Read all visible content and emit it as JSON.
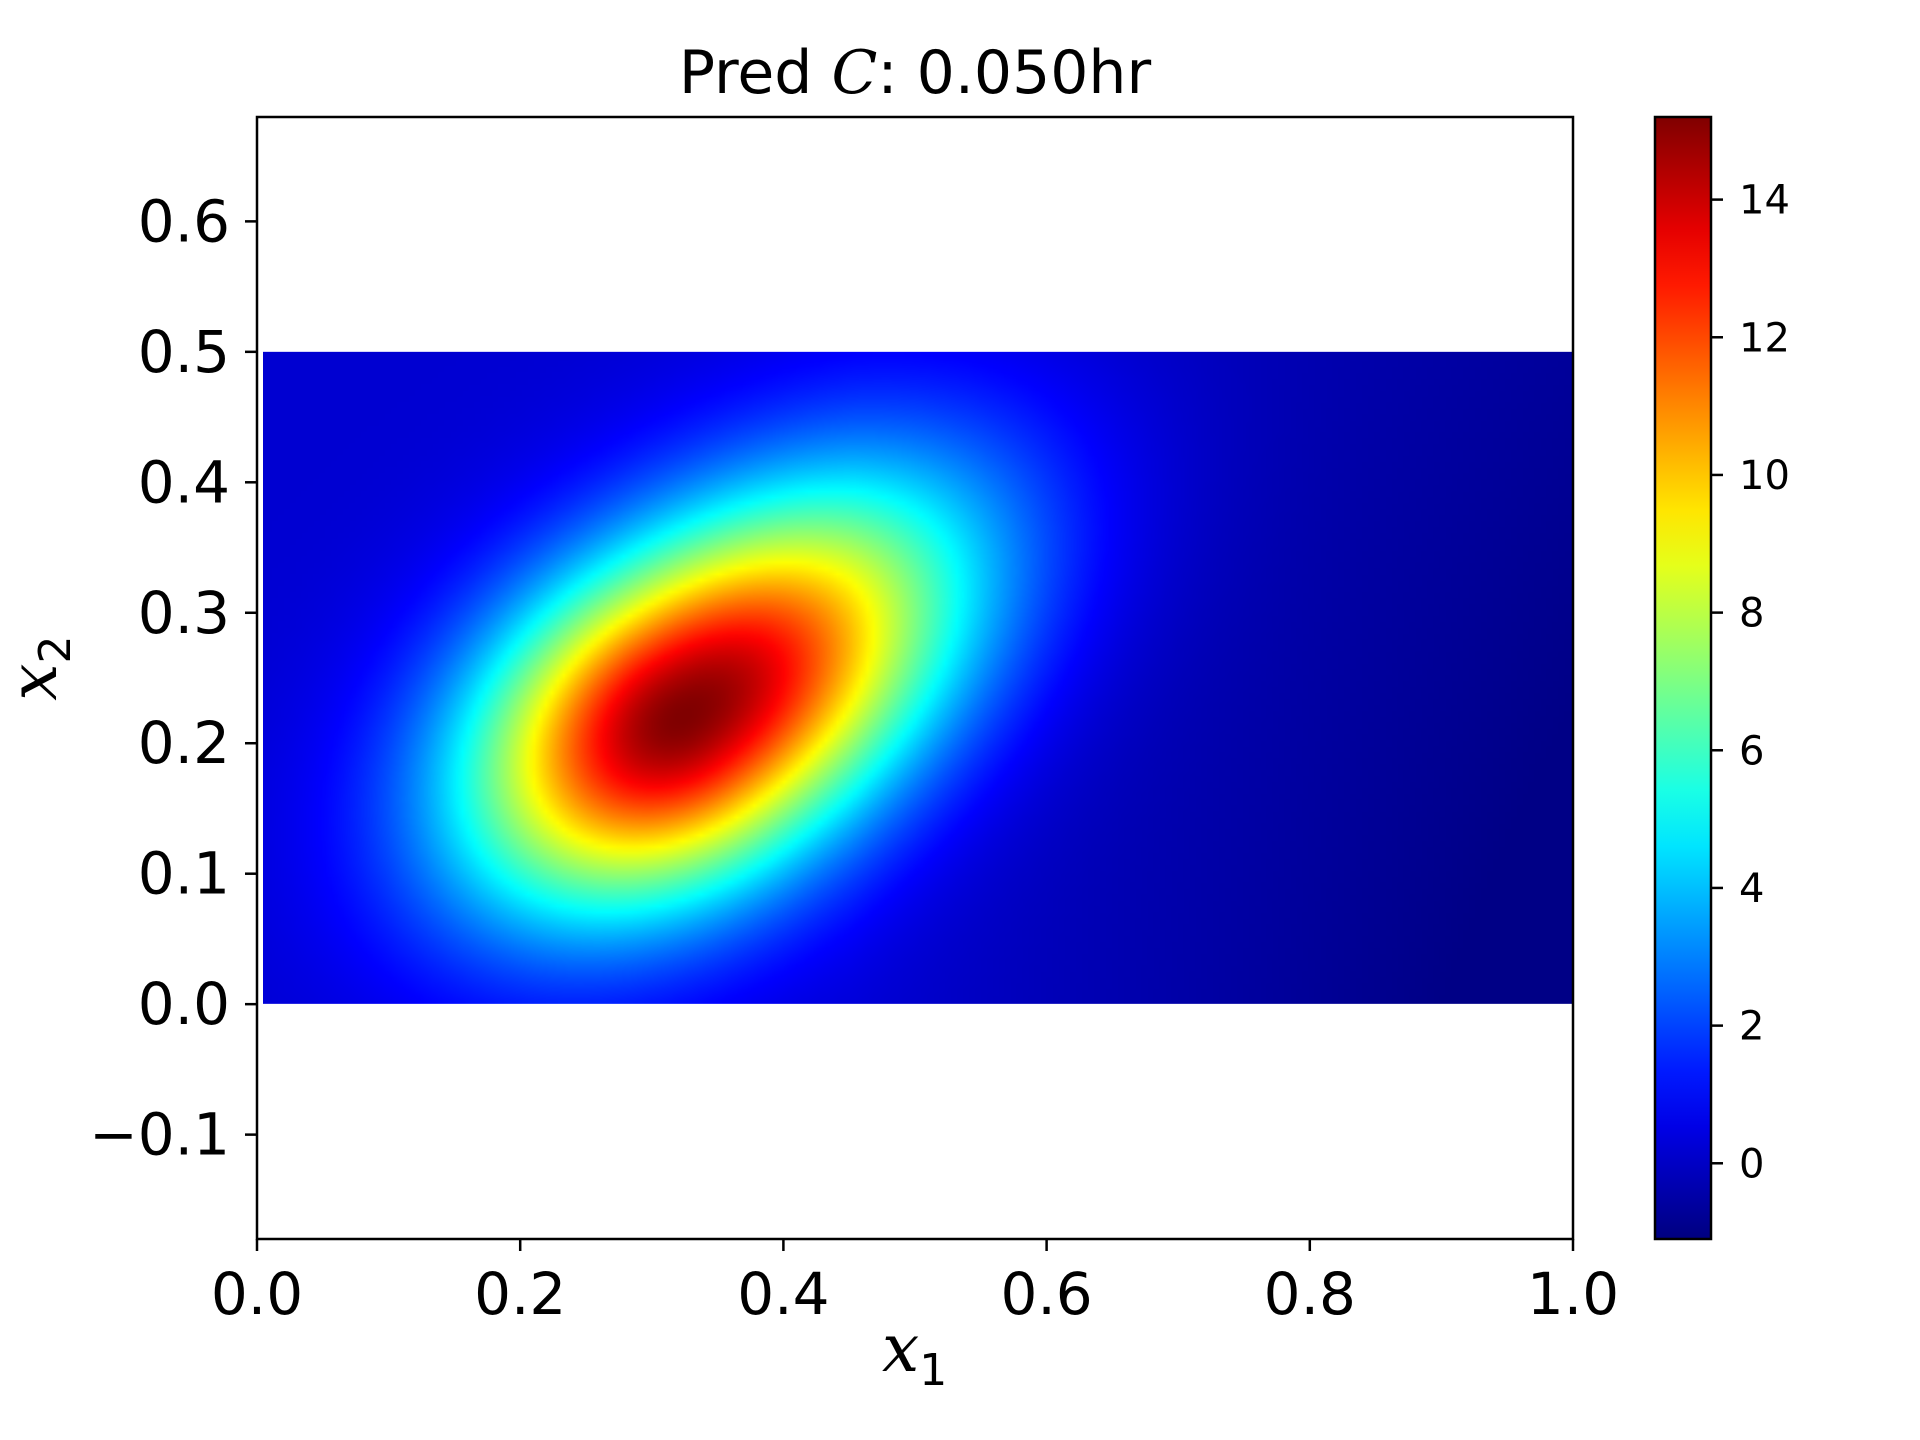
{
  "chart_data": {
    "type": "heatmap",
    "title_prefix": "Pred ",
    "title_symbol": "C",
    "title_suffix": ": 0.050hr",
    "xlabel_symbol": "x",
    "xlabel_sub": "1",
    "ylabel_symbol": "x",
    "ylabel_sub": "2",
    "xlim": [
      0.0,
      1.0
    ],
    "ylim": [
      -0.18,
      0.68
    ],
    "xticks": [
      0.0,
      0.2,
      0.4,
      0.6,
      0.8,
      1.0
    ],
    "xtick_labels": [
      "0.0",
      "0.2",
      "0.4",
      "0.6",
      "0.8",
      "1.0"
    ],
    "yticks": [
      -0.1,
      0.0,
      0.1,
      0.2,
      0.3,
      0.4,
      0.5,
      0.6
    ],
    "ytick_labels": [
      "−0.1",
      "0.0",
      "0.1",
      "0.2",
      "0.3",
      "0.4",
      "0.5",
      "0.6"
    ],
    "data_extent": {
      "x": [
        0.0,
        1.0
      ],
      "y": [
        0.0,
        0.5
      ]
    },
    "colormap": "jet",
    "colorbar": {
      "vmin": -1.1,
      "vmax": 15.2,
      "ticks": [
        0,
        2,
        4,
        6,
        8,
        10,
        12,
        14
      ],
      "tick_labels": [
        "0",
        "2",
        "4",
        "6",
        "8",
        "10",
        "12",
        "14"
      ]
    },
    "field_features": {
      "peak": {
        "x": 0.32,
        "y": 0.22,
        "value": 15.2
      },
      "background": 0.2,
      "minimum_region": {
        "x": 0.85,
        "y": 0.05,
        "value": -1.0
      }
    },
    "grid": false
  }
}
